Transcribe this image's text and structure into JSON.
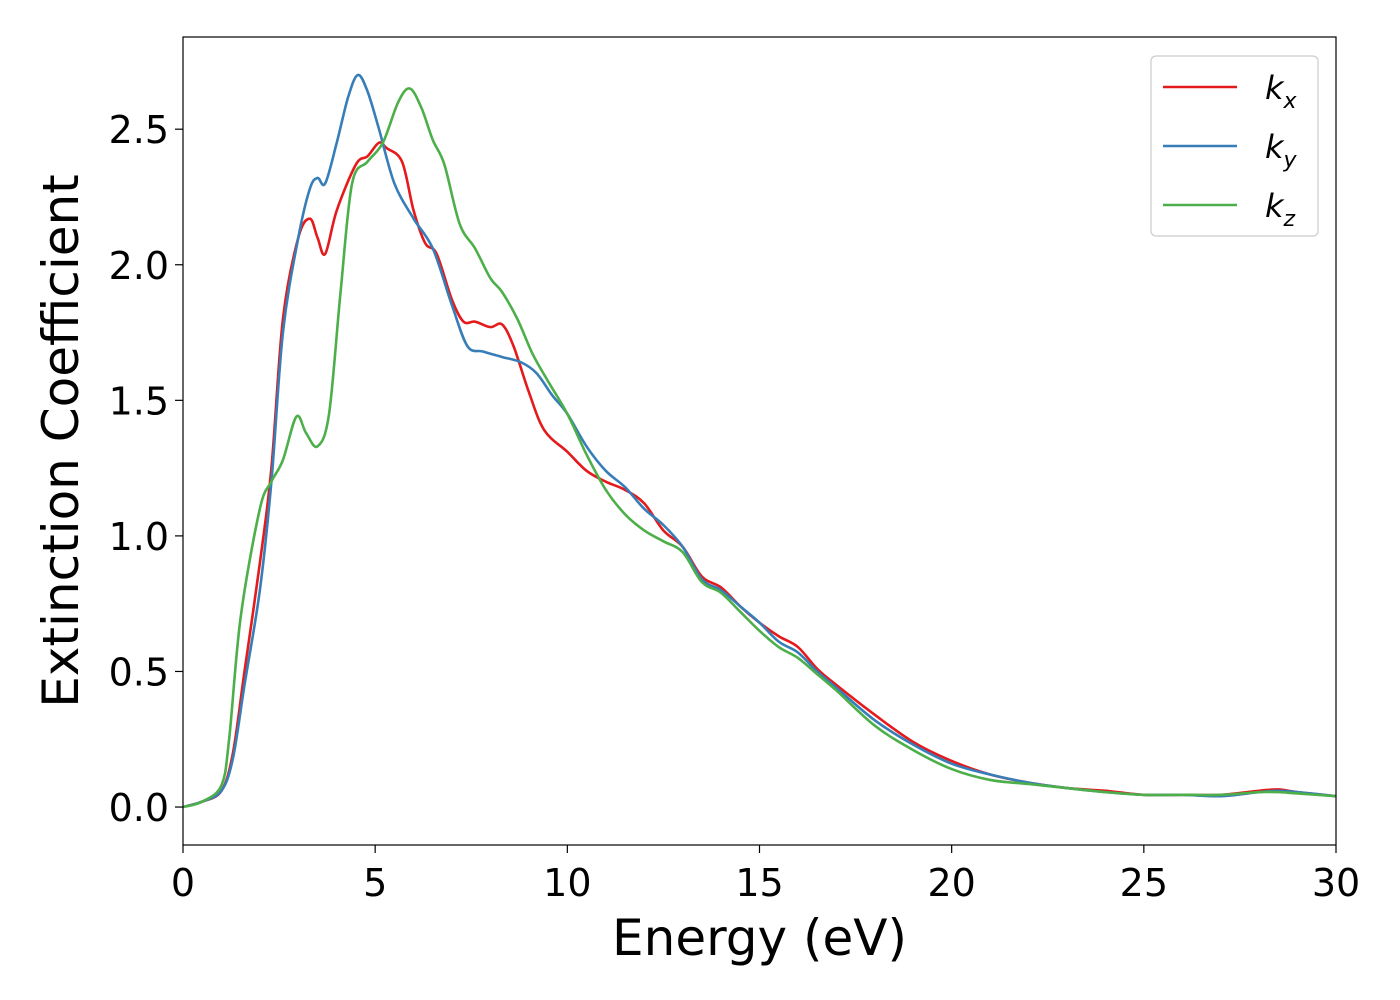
{
  "chart_data": {
    "type": "line",
    "xlabel": "Energy (eV)",
    "ylabel": "Extinction Coefficient",
    "xlim": [
      0,
      30
    ],
    "ylim": [
      -0.14,
      2.84
    ],
    "xticks": [
      0,
      5,
      10,
      15,
      20,
      25,
      30
    ],
    "xtick_labels": [
      "0",
      "5",
      "10",
      "15",
      "20",
      "25",
      "30"
    ],
    "yticks": [
      0.0,
      0.5,
      1.0,
      1.5,
      2.0,
      2.5
    ],
    "ytick_labels": [
      "0.0",
      "0.5",
      "1.0",
      "1.5",
      "2.0",
      "2.5"
    ],
    "grid": false,
    "legend_position": "top-right",
    "series": [
      {
        "name": "k",
        "subscript": "x",
        "color": "#e41a1c",
        "points": [
          [
            0,
            0
          ],
          [
            0.5,
            0.02
          ],
          [
            1,
            0.06
          ],
          [
            1.3,
            0.2
          ],
          [
            1.6,
            0.5
          ],
          [
            2,
            0.9
          ],
          [
            2.3,
            1.25
          ],
          [
            2.6,
            1.8
          ],
          [
            3,
            2.1
          ],
          [
            3.3,
            2.17
          ],
          [
            3.5,
            2.1
          ],
          [
            3.7,
            2.04
          ],
          [
            4,
            2.2
          ],
          [
            4.5,
            2.37
          ],
          [
            4.8,
            2.4
          ],
          [
            5.1,
            2.45
          ],
          [
            5.3,
            2.43
          ],
          [
            5.7,
            2.38
          ],
          [
            6,
            2.2
          ],
          [
            6.3,
            2.08
          ],
          [
            6.6,
            2.04
          ],
          [
            7,
            1.87
          ],
          [
            7.3,
            1.79
          ],
          [
            7.6,
            1.79
          ],
          [
            8,
            1.77
          ],
          [
            8.3,
            1.78
          ],
          [
            8.6,
            1.7
          ],
          [
            9,
            1.53
          ],
          [
            9.4,
            1.39
          ],
          [
            10,
            1.31
          ],
          [
            10.5,
            1.24
          ],
          [
            11,
            1.2
          ],
          [
            11.5,
            1.17
          ],
          [
            12,
            1.12
          ],
          [
            12.5,
            1.02
          ],
          [
            13,
            0.96
          ],
          [
            13.5,
            0.85
          ],
          [
            14,
            0.81
          ],
          [
            14.5,
            0.74
          ],
          [
            15,
            0.68
          ],
          [
            15.5,
            0.63
          ],
          [
            16,
            0.59
          ],
          [
            16.5,
            0.51
          ],
          [
            17,
            0.45
          ],
          [
            18,
            0.34
          ],
          [
            19,
            0.24
          ],
          [
            20,
            0.17
          ],
          [
            21,
            0.12
          ],
          [
            22,
            0.09
          ],
          [
            23,
            0.07
          ],
          [
            24,
            0.06
          ],
          [
            25,
            0.045
          ],
          [
            26,
            0.045
          ],
          [
            27,
            0.045
          ],
          [
            28,
            0.06
          ],
          [
            28.5,
            0.065
          ],
          [
            29,
            0.055
          ],
          [
            30,
            0.04
          ]
        ]
      },
      {
        "name": "k",
        "subscript": "y",
        "color": "#377eb8",
        "points": [
          [
            0,
            0
          ],
          [
            0.5,
            0.02
          ],
          [
            1,
            0.06
          ],
          [
            1.3,
            0.18
          ],
          [
            1.6,
            0.45
          ],
          [
            2,
            0.8
          ],
          [
            2.3,
            1.2
          ],
          [
            2.6,
            1.75
          ],
          [
            3,
            2.1
          ],
          [
            3.3,
            2.28
          ],
          [
            3.5,
            2.32
          ],
          [
            3.7,
            2.3
          ],
          [
            4,
            2.45
          ],
          [
            4.3,
            2.62
          ],
          [
            4.55,
            2.7
          ],
          [
            4.8,
            2.64
          ],
          [
            5.1,
            2.5
          ],
          [
            5.5,
            2.3
          ],
          [
            6,
            2.17
          ],
          [
            6.5,
            2.06
          ],
          [
            7,
            1.85
          ],
          [
            7.4,
            1.7
          ],
          [
            7.8,
            1.68
          ],
          [
            8.3,
            1.66
          ],
          [
            8.8,
            1.64
          ],
          [
            9.2,
            1.6
          ],
          [
            9.6,
            1.52
          ],
          [
            10,
            1.45
          ],
          [
            10.5,
            1.33
          ],
          [
            11,
            1.24
          ],
          [
            11.5,
            1.18
          ],
          [
            12,
            1.1
          ],
          [
            12.5,
            1.04
          ],
          [
            13,
            0.96
          ],
          [
            13.5,
            0.84
          ],
          [
            14,
            0.8
          ],
          [
            14.5,
            0.74
          ],
          [
            15,
            0.68
          ],
          [
            15.5,
            0.61
          ],
          [
            16,
            0.57
          ],
          [
            16.5,
            0.5
          ],
          [
            17,
            0.44
          ],
          [
            18,
            0.32
          ],
          [
            19,
            0.23
          ],
          [
            20,
            0.16
          ],
          [
            21,
            0.12
          ],
          [
            22,
            0.09
          ],
          [
            23,
            0.07
          ],
          [
            24,
            0.055
          ],
          [
            25,
            0.045
          ],
          [
            26,
            0.045
          ],
          [
            27,
            0.04
          ],
          [
            28,
            0.055
          ],
          [
            28.5,
            0.06
          ],
          [
            29,
            0.055
          ],
          [
            30,
            0.04
          ]
        ]
      },
      {
        "name": "k",
        "subscript": "z",
        "color": "#4daf4a",
        "points": [
          [
            0,
            0
          ],
          [
            0.5,
            0.02
          ],
          [
            1,
            0.08
          ],
          [
            1.2,
            0.25
          ],
          [
            1.5,
            0.7
          ],
          [
            2,
            1.1
          ],
          [
            2.3,
            1.2
          ],
          [
            2.6,
            1.28
          ],
          [
            2.95,
            1.44
          ],
          [
            3.2,
            1.38
          ],
          [
            3.5,
            1.33
          ],
          [
            3.8,
            1.45
          ],
          [
            4.1,
            1.9
          ],
          [
            4.4,
            2.3
          ],
          [
            4.8,
            2.38
          ],
          [
            5.2,
            2.45
          ],
          [
            5.6,
            2.6
          ],
          [
            5.9,
            2.65
          ],
          [
            6.2,
            2.58
          ],
          [
            6.5,
            2.46
          ],
          [
            6.8,
            2.37
          ],
          [
            7.2,
            2.15
          ],
          [
            7.6,
            2.06
          ],
          [
            8,
            1.95
          ],
          [
            8.3,
            1.9
          ],
          [
            8.7,
            1.8
          ],
          [
            9.1,
            1.67
          ],
          [
            9.5,
            1.57
          ],
          [
            10,
            1.45
          ],
          [
            10.5,
            1.3
          ],
          [
            11,
            1.17
          ],
          [
            11.5,
            1.08
          ],
          [
            12,
            1.02
          ],
          [
            12.5,
            0.98
          ],
          [
            13,
            0.94
          ],
          [
            13.5,
            0.83
          ],
          [
            14,
            0.79
          ],
          [
            14.5,
            0.72
          ],
          [
            15,
            0.65
          ],
          [
            15.5,
            0.59
          ],
          [
            16,
            0.55
          ],
          [
            16.5,
            0.49
          ],
          [
            17,
            0.43
          ],
          [
            18,
            0.3
          ],
          [
            19,
            0.21
          ],
          [
            20,
            0.14
          ],
          [
            21,
            0.1
          ],
          [
            22,
            0.085
          ],
          [
            23,
            0.07
          ],
          [
            24,
            0.055
          ],
          [
            25,
            0.045
          ],
          [
            26,
            0.045
          ],
          [
            27,
            0.045
          ],
          [
            28,
            0.055
          ],
          [
            28.5,
            0.055
          ],
          [
            29,
            0.05
          ],
          [
            30,
            0.04
          ]
        ]
      }
    ]
  }
}
